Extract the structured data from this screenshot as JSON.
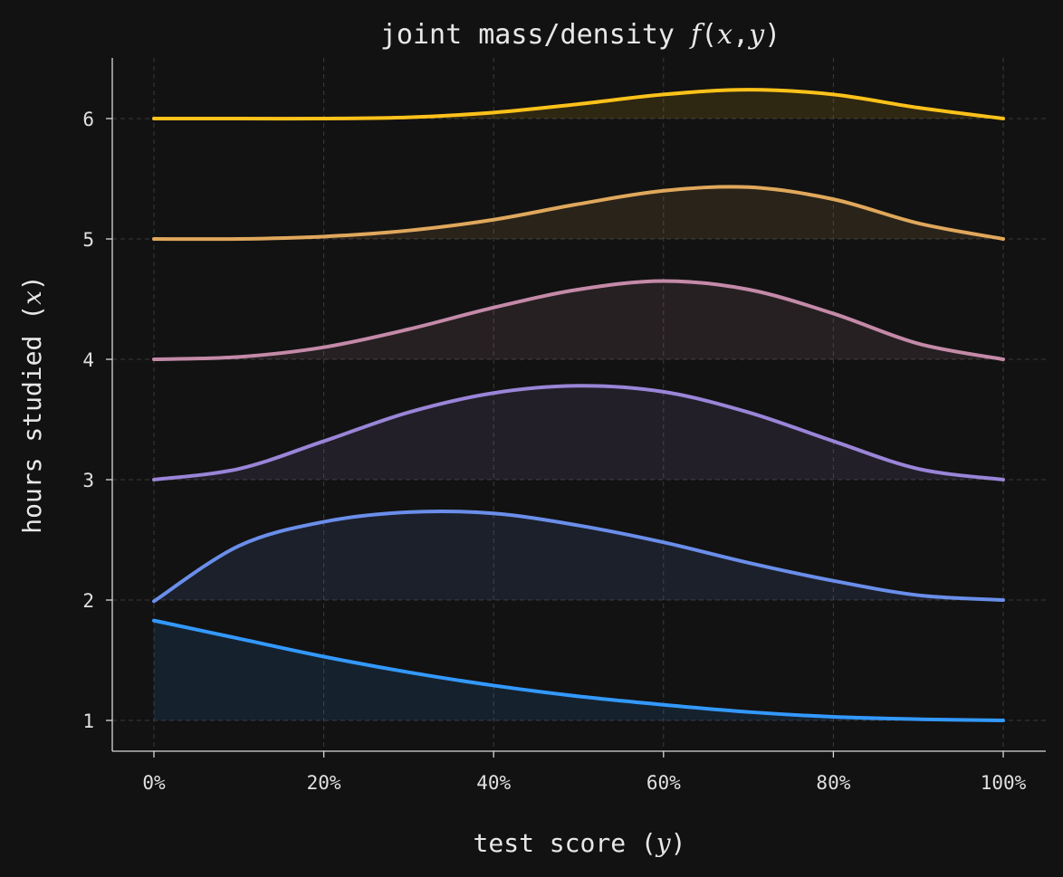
{
  "chart_data": {
    "type": "area",
    "title": {
      "prefix": "joint mass/density ",
      "func": "f",
      "open": "(",
      "var1": "x",
      "comma": ",",
      "var2": "y",
      "close": ")"
    },
    "xlabel": {
      "prefix": "test score (",
      "var": "y",
      "suffix": ")"
    },
    "ylabel": {
      "prefix": "hours studied (",
      "var": "x",
      "suffix": ")"
    },
    "x_ticks": [
      "0%",
      "20%",
      "40%",
      "60%",
      "80%",
      "100%"
    ],
    "y_ticks": [
      "1",
      "2",
      "3",
      "4",
      "5",
      "6"
    ],
    "xlim": [
      -0.05,
      1.05
    ],
    "ylim": [
      0.75,
      6.5
    ],
    "grid": true,
    "x": [
      0,
      0.1,
      0.2,
      0.3,
      0.4,
      0.5,
      0.6,
      0.7,
      0.8,
      0.9,
      1.0
    ],
    "series": [
      {
        "baseline": 1,
        "color": "#3399ff",
        "values": [
          1.83,
          1.68,
          1.53,
          1.4,
          1.29,
          1.2,
          1.13,
          1.07,
          1.03,
          1.01,
          1.0
        ]
      },
      {
        "baseline": 2,
        "color": "#6a8eea",
        "values": [
          1.99,
          2.45,
          2.65,
          2.73,
          2.72,
          2.62,
          2.48,
          2.31,
          2.16,
          2.04,
          2.0
        ]
      },
      {
        "baseline": 3,
        "color": "#9a85d8",
        "values": [
          3.0,
          3.09,
          3.32,
          3.56,
          3.72,
          3.78,
          3.73,
          3.56,
          3.32,
          3.09,
          3.0
        ]
      },
      {
        "baseline": 4,
        "color": "#c48aa8",
        "values": [
          4.0,
          4.02,
          4.1,
          4.25,
          4.43,
          4.58,
          4.65,
          4.58,
          4.38,
          4.13,
          4.0
        ]
      },
      {
        "baseline": 5,
        "color": "#e0a85c",
        "values": [
          5.0,
          5.0,
          5.02,
          5.07,
          5.16,
          5.29,
          5.4,
          5.43,
          5.33,
          5.13,
          5.0
        ]
      },
      {
        "baseline": 6,
        "color": "#ffc21a",
        "values": [
          6.0,
          6.0,
          6.0,
          6.01,
          6.05,
          6.12,
          6.2,
          6.24,
          6.2,
          6.09,
          6.0
        ]
      }
    ]
  }
}
